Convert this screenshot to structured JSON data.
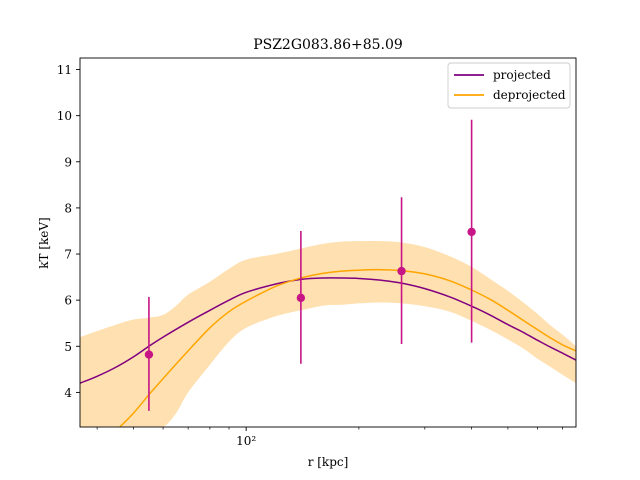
{
  "chart_data": {
    "type": "line",
    "title": "PSZ2G083.86+85.09",
    "xlabel": "r [kpc]",
    "ylabel": "kT [keV]",
    "x_scale": "log",
    "xlim": [
      36,
      760
    ],
    "ylim": [
      3.25,
      11.25
    ],
    "x_ticks": [
      {
        "value": 100,
        "label": "10²"
      }
    ],
    "y_ticks": [
      4,
      5,
      6,
      7,
      8,
      9,
      10,
      11
    ],
    "grid": false,
    "legend_position": "top-right",
    "colors": {
      "projected": "#800080",
      "deprojected": "#FFA500",
      "band": "#FFE0B0",
      "points": "#C71585"
    },
    "series": [
      {
        "name": "projected",
        "x": [
          36,
          40,
          45,
          50,
          55,
          60,
          70,
          80,
          90,
          100,
          120,
          140,
          160,
          180,
          200,
          230,
          260,
          300,
          350,
          400,
          450,
          500,
          550,
          600,
          650,
          700,
          760
        ],
        "y": [
          4.2,
          4.35,
          4.55,
          4.77,
          5.0,
          5.2,
          5.52,
          5.78,
          6.0,
          6.17,
          6.35,
          6.45,
          6.48,
          6.48,
          6.47,
          6.43,
          6.37,
          6.25,
          6.07,
          5.87,
          5.67,
          5.47,
          5.3,
          5.13,
          4.98,
          4.85,
          4.7
        ]
      },
      {
        "name": "deprojected",
        "x": [
          46,
          50,
          55,
          60,
          70,
          80,
          90,
          100,
          120,
          140,
          160,
          180,
          200,
          230,
          260,
          300,
          350,
          400,
          450,
          500,
          550,
          600,
          650,
          700,
          760
        ],
        "y": [
          3.25,
          3.55,
          3.95,
          4.3,
          4.9,
          5.4,
          5.75,
          5.98,
          6.3,
          6.48,
          6.58,
          6.63,
          6.65,
          6.66,
          6.64,
          6.57,
          6.42,
          6.22,
          6.01,
          5.78,
          5.56,
          5.36,
          5.18,
          5.03,
          4.9
        ]
      }
    ],
    "band": {
      "name": "deprojected uncertainty",
      "x": [
        36,
        40,
        45,
        50,
        55,
        60,
        65,
        70,
        80,
        90,
        100,
        120,
        140,
        160,
        180,
        200,
        230,
        260,
        300,
        350,
        400,
        450,
        500,
        550,
        600,
        650,
        700,
        760
      ],
      "upper": [
        5.2,
        5.33,
        5.47,
        5.58,
        5.62,
        5.68,
        5.88,
        6.12,
        6.4,
        6.68,
        6.88,
        7.0,
        7.12,
        7.22,
        7.27,
        7.28,
        7.28,
        7.25,
        7.15,
        6.95,
        6.72,
        6.45,
        6.2,
        5.95,
        5.7,
        5.45,
        5.25,
        5.0
      ],
      "lower": [
        3.25,
        3.25,
        3.25,
        3.25,
        3.25,
        3.25,
        3.55,
        4.0,
        4.6,
        5.1,
        5.4,
        5.65,
        5.78,
        5.88,
        5.9,
        5.93,
        5.95,
        5.93,
        5.87,
        5.75,
        5.55,
        5.35,
        5.15,
        4.95,
        4.73,
        4.55,
        4.38,
        4.2
      ]
    },
    "points": [
      {
        "x": 55,
        "y": 4.82,
        "yerr_low": 1.22,
        "yerr_high": 1.25
      },
      {
        "x": 140,
        "y": 6.05,
        "yerr_low": 1.43,
        "yerr_high": 1.45
      },
      {
        "x": 260,
        "y": 6.63,
        "yerr_low": 1.58,
        "yerr_high": 1.6
      },
      {
        "x": 400,
        "y": 7.48,
        "yerr_low": 2.4,
        "yerr_high": 2.43
      }
    ],
    "legend": [
      "projected",
      "deprojected"
    ]
  }
}
